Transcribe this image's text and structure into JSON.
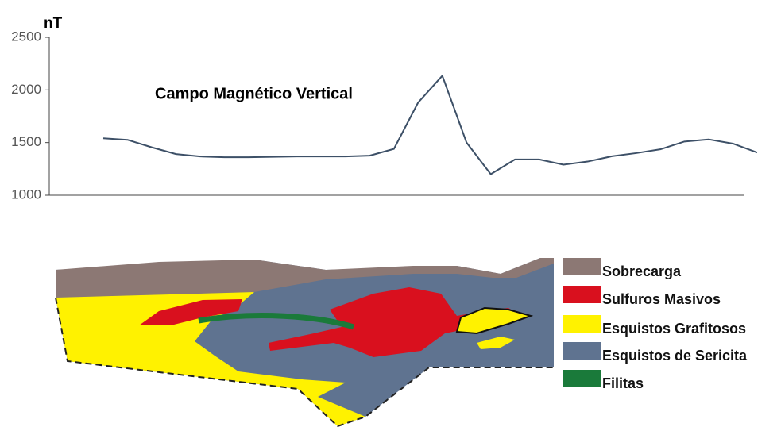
{
  "chart_data": {
    "type": "line",
    "title": "Campo Magnético Vertical",
    "y_label": "nT",
    "categories": [
      null,
      null,
      null,
      null,
      null,
      null,
      null,
      null,
      null,
      null,
      null,
      null,
      null,
      null,
      null,
      null,
      null,
      null,
      null,
      null,
      null,
      null,
      null,
      null,
      null,
      null,
      null,
      null
    ],
    "values": [
      1541,
      1526,
      1455,
      1391,
      1368,
      1361,
      1361,
      1365,
      1368,
      1368,
      1368,
      1376,
      1440,
      1880,
      2135,
      1500,
      1200,
      1340,
      1340,
      1290,
      1320,
      1370,
      1400,
      1436,
      1510,
      1530,
      1490,
      1406
    ],
    "color": "#3d5067",
    "ylim": [
      1000,
      2500
    ],
    "yticks": [
      1000,
      1500,
      2000,
      2500
    ]
  },
  "section": {
    "legend": [
      {
        "label": "Sobrecarga",
        "color": "#8c7874"
      },
      {
        "label": "Sulfuros Masivos",
        "color": "#d9101e"
      },
      {
        "label": "Esquistos Grafitosos",
        "color": "#fff200"
      },
      {
        "label": "Esquistos de Sericita",
        "color": "#5f7390"
      },
      {
        "label": "Filitas",
        "color": "#1a7a3a"
      }
    ]
  }
}
